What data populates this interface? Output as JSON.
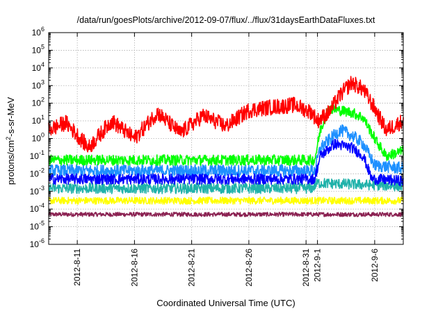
{
  "chart_data": {
    "type": "line",
    "title": "/data/run/goesPlots/archive/2012-09-07/flux/../flux/31daysEarthDataFluxes.txt",
    "xlabel": "Coordinated Universal Time (UTC)",
    "ylabel": "protons/cm2-s-sr-MeV",
    "ylabel_parts": {
      "main": "protons/cm",
      "sup": "2",
      "rest": "-s-sr-MeV"
    },
    "yscale": "log",
    "ylim": [
      1e-06,
      1000000.0
    ],
    "y_ticks": [
      {
        "base": "10",
        "exp": "-6",
        "value": 1e-06
      },
      {
        "base": "10",
        "exp": "-5",
        "value": 1e-05
      },
      {
        "base": "10",
        "exp": "-4",
        "value": 0.0001
      },
      {
        "base": "10",
        "exp": "-3",
        "value": 0.001
      },
      {
        "base": "10",
        "exp": "-2",
        "value": 0.01
      },
      {
        "base": "10",
        "exp": "-1",
        "value": 0.1
      },
      {
        "base": "10",
        "exp": "0",
        "value": 1
      },
      {
        "base": "10",
        "exp": "1",
        "value": 10
      },
      {
        "base": "10",
        "exp": "2",
        "value": 100
      },
      {
        "base": "10",
        "exp": "3",
        "value": 1000
      },
      {
        "base": "10",
        "exp": "4",
        "value": 10000
      },
      {
        "base": "10",
        "exp": "5",
        "value": 100000
      },
      {
        "base": "10",
        "exp": "6",
        "value": 1000000
      }
    ],
    "xlim": [
      "2012-08-08T12:00",
      "2012-09-08T12:00"
    ],
    "x_ticks": [
      "2012-8-11",
      "2012-8-16",
      "2012-8-21",
      "2012-8-26",
      "2012-8-31",
      "2012-9-1",
      "2012-9-6"
    ],
    "x_tick_dates": [
      "2012-08-11",
      "2012-08-16",
      "2012-08-21",
      "2012-08-26",
      "2012-08-31",
      "2012-09-01",
      "2012-09-06"
    ],
    "grid": true,
    "series": [
      {
        "color": "#8b2252",
        "keypoints": [
          [
            "2012-08-08T12:00",
            5e-05
          ],
          [
            "2012-09-08T12:00",
            5e-05
          ]
        ],
        "noise": 0.12
      },
      {
        "color": "#ffff00",
        "keypoints": [
          [
            "2012-08-08T12:00",
            0.0003
          ],
          [
            "2012-09-08T12:00",
            0.0003
          ]
        ],
        "noise": 0.2
      },
      {
        "color": "#20b2aa",
        "keypoints": [
          [
            "2012-08-08T12:00",
            0.0015
          ],
          [
            "2012-08-31T12:00",
            0.0015
          ],
          [
            "2012-09-01T00:00",
            0.003
          ],
          [
            "2012-09-08T12:00",
            0.002
          ]
        ],
        "noise": 0.3
      },
      {
        "color": "#1e90ff",
        "keypoints": [
          [
            "2012-08-08T12:00",
            0.015
          ],
          [
            "2012-08-31T18:00",
            0.015
          ],
          [
            "2012-09-01T06:00",
            0.3
          ],
          [
            "2012-09-03T00:00",
            3
          ],
          [
            "2012-09-04T00:00",
            1.5
          ],
          [
            "2012-09-05T00:00",
            0.5
          ],
          [
            "2012-09-06T00:00",
            0.03
          ],
          [
            "2012-09-08T12:00",
            0.02
          ]
        ],
        "noise": 0.35
      },
      {
        "color": "#00ff00",
        "keypoints": [
          [
            "2012-08-08T12:00",
            0.06
          ],
          [
            "2012-08-31T18:00",
            0.06
          ],
          [
            "2012-09-01T06:00",
            3
          ],
          [
            "2012-09-02T00:00",
            50
          ],
          [
            "2012-09-04T00:00",
            30
          ],
          [
            "2012-09-05T00:00",
            15
          ],
          [
            "2012-09-06T00:00",
            1
          ],
          [
            "2012-09-07T00:00",
            0.1
          ],
          [
            "2012-09-08T12:00",
            0.2
          ]
        ],
        "noise": 0.3
      },
      {
        "color": "#0000ff",
        "keypoints": [
          [
            "2012-08-08T12:00",
            0.005
          ],
          [
            "2012-08-31T18:00",
            0.005
          ],
          [
            "2012-09-01T06:00",
            0.1
          ],
          [
            "2012-09-02T12:00",
            0.5
          ],
          [
            "2012-09-04T00:00",
            0.3
          ],
          [
            "2012-09-05T00:00",
            0.1
          ],
          [
            "2012-09-05T18:00",
            0.005
          ],
          [
            "2012-09-08T12:00",
            0.004
          ]
        ],
        "noise": 0.3
      },
      {
        "color": "#ff0000",
        "keypoints": [
          [
            "2012-08-08T12:00",
            3
          ],
          [
            "2012-08-10T00:00",
            8
          ],
          [
            "2012-08-12T00:00",
            0.3
          ],
          [
            "2012-08-14T00:00",
            10
          ],
          [
            "2012-08-16T00:00",
            1
          ],
          [
            "2012-08-18T00:00",
            30
          ],
          [
            "2012-08-20T00:00",
            2
          ],
          [
            "2012-08-22T00:00",
            20
          ],
          [
            "2012-08-24T00:00",
            5
          ],
          [
            "2012-08-26T00:00",
            40
          ],
          [
            "2012-08-28T00:00",
            60
          ],
          [
            "2012-08-30T00:00",
            80
          ],
          [
            "2012-08-31T12:00",
            30
          ],
          [
            "2012-09-01T00:00",
            10
          ],
          [
            "2012-09-02T00:00",
            30
          ],
          [
            "2012-09-03T00:00",
            300
          ],
          [
            "2012-09-04T00:00",
            1500
          ],
          [
            "2012-09-05T00:00",
            600
          ],
          [
            "2012-09-06T00:00",
            50
          ],
          [
            "2012-09-07T00:00",
            3
          ],
          [
            "2012-09-08T12:00",
            10
          ]
        ],
        "noise": 0.45
      }
    ]
  }
}
